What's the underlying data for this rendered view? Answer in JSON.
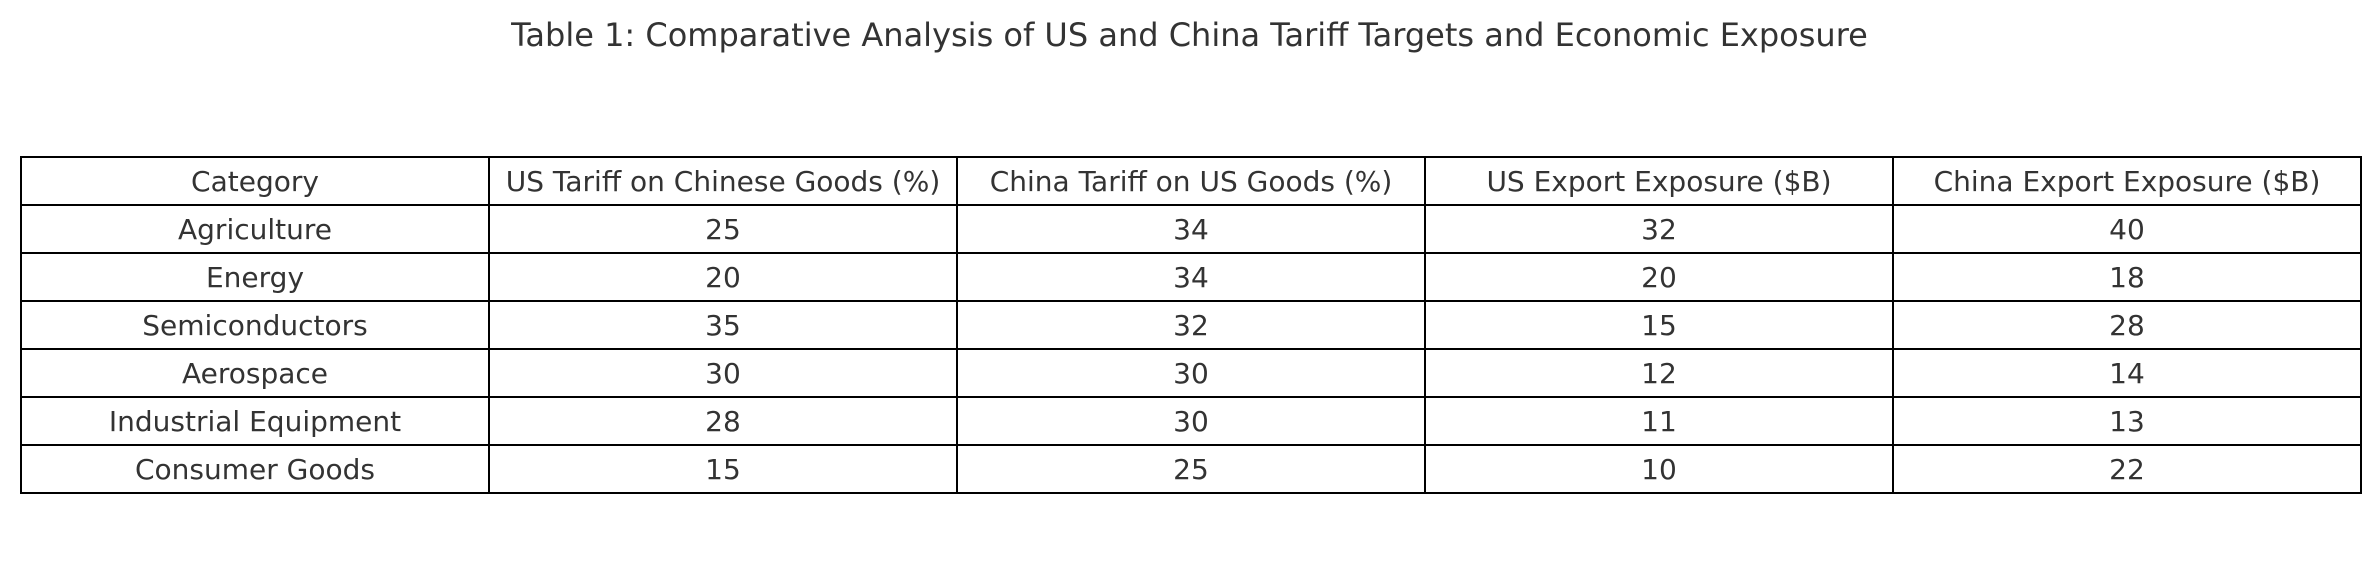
{
  "chart_data": {
    "type": "table",
    "title": "Table 1: Comparative Analysis of US and China Tariff Targets and Economic Exposure",
    "columns": [
      "Category",
      "US Tariff on Chinese Goods (%)",
      "China Tariff on US Goods (%)",
      "US Export Exposure ($B)",
      "China Export Exposure ($B)"
    ],
    "rows": [
      [
        "Agriculture",
        "25",
        "34",
        "32",
        "40"
      ],
      [
        "Energy",
        "20",
        "34",
        "20",
        "18"
      ],
      [
        "Semiconductors",
        "35",
        "32",
        "15",
        "28"
      ],
      [
        "Aerospace",
        "30",
        "30",
        "12",
        "14"
      ],
      [
        "Industrial Equipment",
        "28",
        "30",
        "11",
        "13"
      ],
      [
        "Consumer Goods",
        "15",
        "25",
        "10",
        "22"
      ]
    ]
  }
}
